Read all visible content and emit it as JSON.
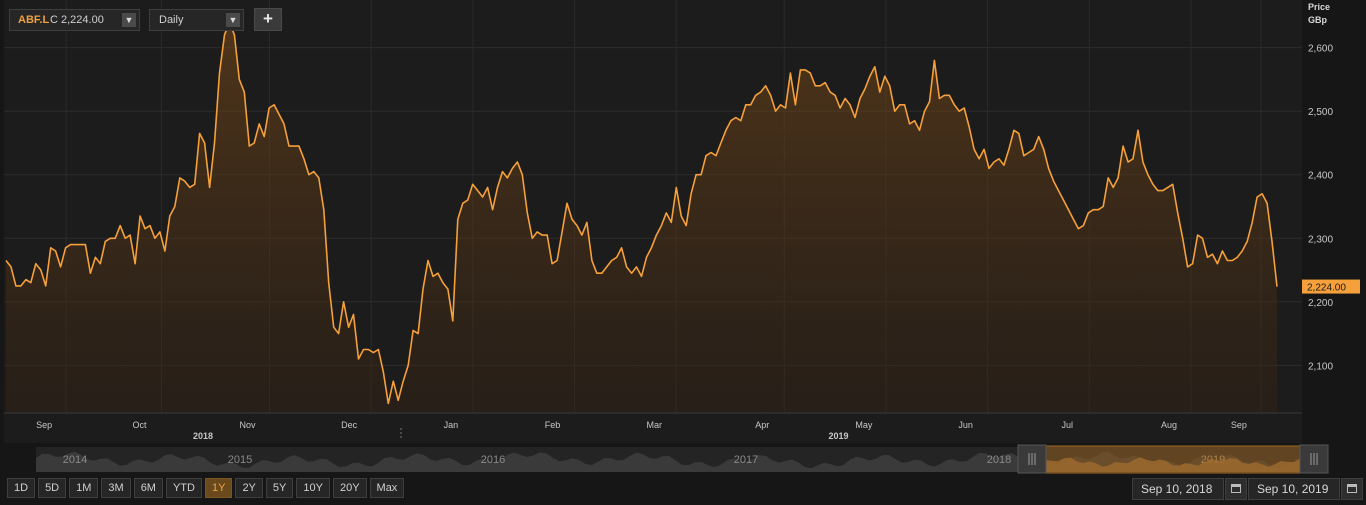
{
  "toolbar": {
    "symbol": "ABF.L",
    "close_label": "C 2,224.00",
    "interval": "Daily",
    "add_label": "+"
  },
  "range_buttons": [
    "1D",
    "5D",
    "1M",
    "3M",
    "6M",
    "YTD",
    "1Y",
    "2Y",
    "5Y",
    "10Y",
    "20Y",
    "Max"
  ],
  "active_range": "1Y",
  "date_range": {
    "from": "Sep 10, 2018",
    "to": "Sep 10, 2019"
  },
  "navigator": {
    "years": [
      "2014",
      "2015",
      "2016",
      "2017",
      "2018",
      "2019"
    ]
  },
  "colors": {
    "line": "#f5a03a",
    "background": "#161616"
  },
  "chart_data": {
    "type": "area",
    "series": [
      {
        "name": "ABF.L",
        "values": [
          2265,
          2255,
          2225,
          2225,
          2235,
          2230,
          2260,
          2250,
          2225,
          2285,
          2280,
          2255,
          2285,
          2290,
          2290,
          2290,
          2290,
          2245,
          2270,
          2260,
          2295,
          2300,
          2300,
          2320,
          2300,
          2305,
          2260,
          2335,
          2315,
          2320,
          2300,
          2310,
          2280,
          2335,
          2350,
          2395,
          2390,
          2380,
          2385,
          2465,
          2450,
          2380,
          2450,
          2560,
          2620,
          2640,
          2620,
          2550,
          2530,
          2445,
          2450,
          2480,
          2460,
          2505,
          2510,
          2495,
          2480,
          2445,
          2445,
          2445,
          2425,
          2400,
          2405,
          2395,
          2345,
          2230,
          2160,
          2150,
          2200,
          2160,
          2180,
          2110,
          2125,
          2125,
          2120,
          2125,
          2090,
          2040,
          2075,
          2045,
          2075,
          2100,
          2155,
          2150,
          2220,
          2265,
          2240,
          2245,
          2230,
          2220,
          2170,
          2330,
          2355,
          2360,
          2385,
          2375,
          2365,
          2380,
          2345,
          2380,
          2405,
          2395,
          2410,
          2420,
          2400,
          2340,
          2300,
          2310,
          2305,
          2305,
          2260,
          2265,
          2310,
          2355,
          2330,
          2320,
          2305,
          2325,
          2265,
          2245,
          2245,
          2255,
          2265,
          2270,
          2285,
          2255,
          2245,
          2255,
          2240,
          2270,
          2285,
          2305,
          2320,
          2340,
          2325,
          2380,
          2335,
          2320,
          2370,
          2400,
          2400,
          2430,
          2435,
          2430,
          2450,
          2470,
          2485,
          2490,
          2485,
          2510,
          2510,
          2525,
          2530,
          2540,
          2525,
          2500,
          2510,
          2505,
          2560,
          2510,
          2565,
          2565,
          2560,
          2540,
          2540,
          2545,
          2530,
          2525,
          2505,
          2520,
          2510,
          2490,
          2520,
          2535,
          2555,
          2570,
          2530,
          2555,
          2540,
          2500,
          2510,
          2510,
          2480,
          2485,
          2470,
          2500,
          2515,
          2580,
          2520,
          2525,
          2525,
          2510,
          2500,
          2505,
          2475,
          2440,
          2425,
          2440,
          2410,
          2420,
          2425,
          2415,
          2440,
          2470,
          2465,
          2430,
          2435,
          2440,
          2460,
          2440,
          2410,
          2390,
          2375,
          2360,
          2345,
          2330,
          2315,
          2320,
          2340,
          2345,
          2345,
          2350,
          2395,
          2380,
          2395,
          2445,
          2420,
          2425,
          2470,
          2420,
          2400,
          2385,
          2375,
          2375,
          2380,
          2385,
          2340,
          2300,
          2255,
          2260,
          2305,
          2300,
          2270,
          2275,
          2260,
          2280,
          2265,
          2265,
          2270,
          2280,
          2295,
          2325,
          2365,
          2370,
          2355,
          2295,
          2224
        ]
      }
    ],
    "x_labels": [
      "Sep",
      "Oct",
      "Nov",
      "Dec",
      "Jan",
      "Feb",
      "Mar",
      "Apr",
      "May",
      "Jun",
      "Jul",
      "Aug",
      "Sep"
    ],
    "year_labels": [
      "2018",
      "2019"
    ],
    "ylabel": "Price",
    "yunit": "GBp",
    "y_ticks": [
      "2,100",
      "2,200",
      "2,300",
      "2,400",
      "2,500",
      "2,600"
    ],
    "ylim": [
      2025,
      2675
    ],
    "last_value_label": "2,224.00",
    "grid": true
  }
}
